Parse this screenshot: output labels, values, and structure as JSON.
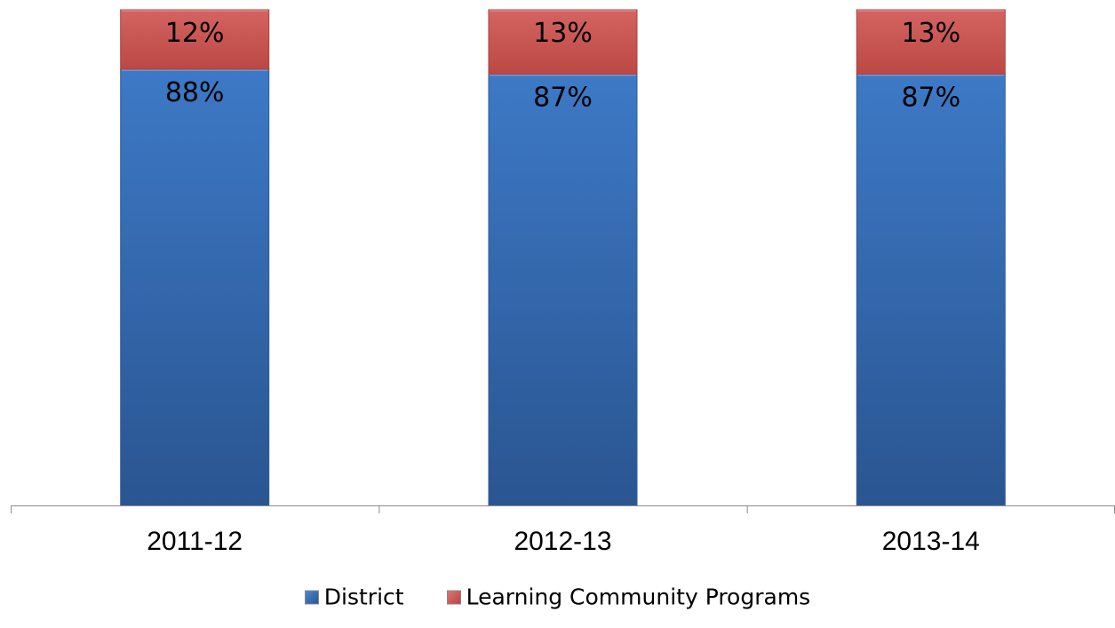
{
  "chart_data": {
    "type": "bar",
    "stacked": true,
    "percent_stacked": true,
    "categories": [
      "2011-12",
      "2012-13",
      "2013-14"
    ],
    "series": [
      {
        "name": "District",
        "values": [
          88,
          87,
          87
        ],
        "labels": [
          "88%",
          "87%",
          "87%"
        ],
        "color": "#3a6fb5"
      },
      {
        "name": "Learning Community Programs",
        "values": [
          12,
          13,
          13
        ],
        "labels": [
          "12%",
          "13%",
          "13%"
        ],
        "color": "#c9504d"
      }
    ],
    "ylim": [
      0,
      100
    ],
    "grid": false,
    "legend_position": "bottom"
  }
}
